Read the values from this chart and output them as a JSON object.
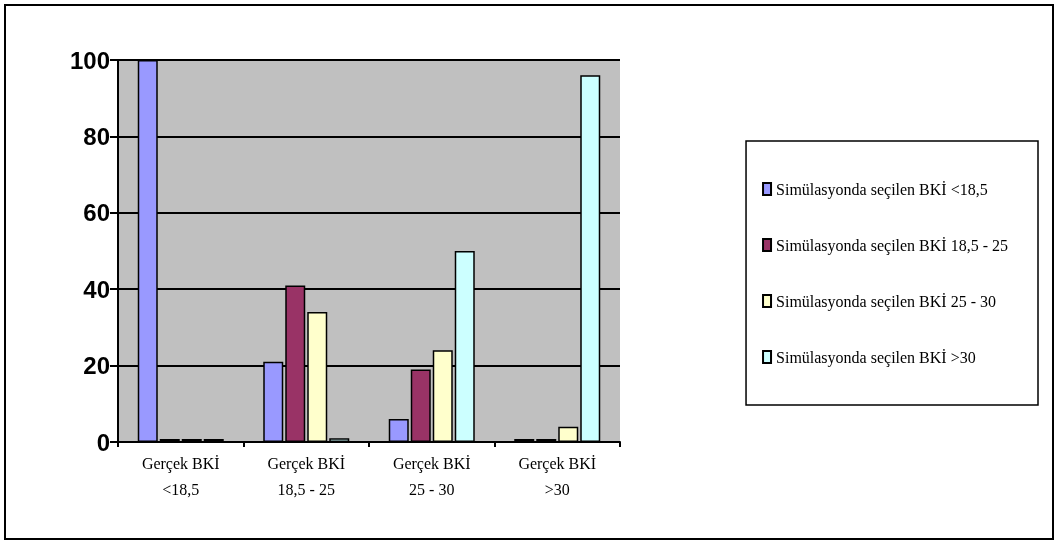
{
  "chart_data": {
    "type": "bar",
    "categories": [
      "Gerçek BKİ\n<18,5",
      "Gerçek BKİ\n18,5 - 25",
      "Gerçek BKİ\n25 - 30",
      "Gerçek BKİ\n>30"
    ],
    "series": [
      {
        "name": "Simülasyonda seçilen BKİ <18,5",
        "color": "#9999ff",
        "values": [
          100,
          21,
          6,
          0
        ]
      },
      {
        "name": "Simülasyonda seçilen BKİ 18,5 - 25",
        "color": "#993366",
        "values": [
          0,
          41,
          19,
          0
        ]
      },
      {
        "name": "Simülasyonda seçilen BKİ 25 - 30",
        "color": "#ffffcc",
        "values": [
          0,
          34,
          24,
          4
        ]
      },
      {
        "name": "Simülasyonda seçilen BKİ >30",
        "color": "#ccffff",
        "values": [
          0,
          1,
          50,
          96
        ]
      }
    ],
    "ylim": [
      0,
      100
    ],
    "yticks": [
      0,
      20,
      40,
      60,
      80,
      100
    ],
    "grid": "y",
    "legend": "right"
  }
}
